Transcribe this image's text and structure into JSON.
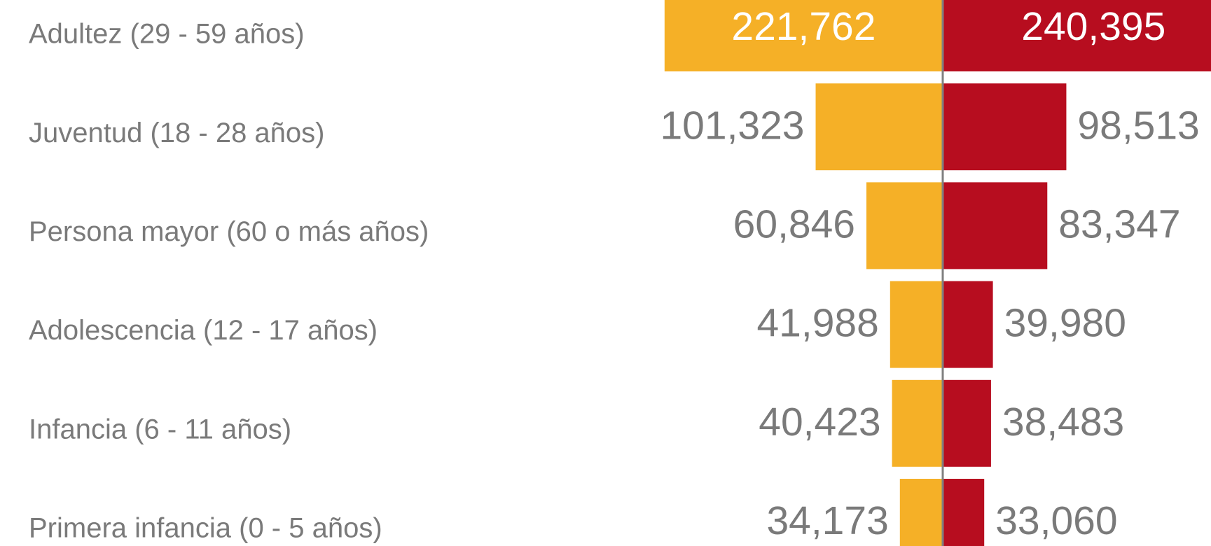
{
  "chart_data": {
    "type": "butterfly",
    "categories": [
      "Adultez (29 - 59 años)",
      "Juventud (18 - 28 años)",
      "Persona mayor (60 o más años)",
      "Adolescencia (12 - 17 años)",
      "Infancia (6 - 11 años)",
      "Primera infancia (0 - 5 años)"
    ],
    "series": [
      {
        "color": "#f5b027",
        "values": [
          221762,
          101323,
          60846,
          41988,
          40423,
          34173
        ],
        "value_labels": [
          "221,762",
          "101,323",
          "60,846",
          "41,988",
          "40,423",
          "34,173"
        ]
      },
      {
        "color": "#b70d1f",
        "values": [
          240395,
          98513,
          83347,
          39980,
          38483,
          33060
        ],
        "value_labels": [
          "240,395",
          "98,513",
          "83,347",
          "39,980",
          "38,483",
          "33,060"
        ]
      }
    ]
  }
}
